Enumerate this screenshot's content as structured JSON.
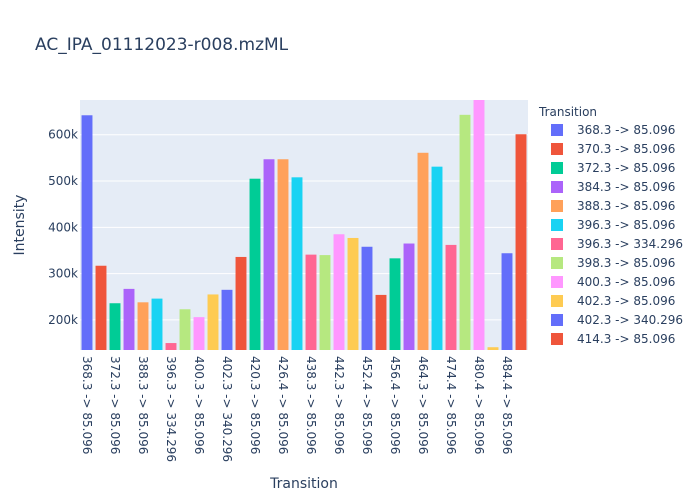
{
  "chart_data": {
    "type": "bar",
    "title": "AC_IPA_01112023-r008.mzML",
    "xlabel": "Transition",
    "ylabel": "Intensity",
    "ylim": [
      135000,
      675000
    ],
    "grid": true,
    "legend_placement": "right",
    "legend_title": "Transition",
    "yticks": [
      {
        "value": 200000,
        "label": "200k"
      },
      {
        "value": 300000,
        "label": "300k"
      },
      {
        "value": 400000,
        "label": "400k"
      },
      {
        "value": 500000,
        "label": "500k"
      },
      {
        "value": 600000,
        "label": "600k"
      }
    ],
    "xtick_labels": [
      "368.3 -> 85.096",
      "372.3 -> 85.096",
      "388.3 -> 85.096",
      "396.3 -> 334.296",
      "400.3 -> 85.096",
      "402.3 -> 340.296",
      "420.3 -> 85.096",
      "426.4 -> 85.096",
      "438.3 -> 85.096",
      "442.3 -> 85.096",
      "452.4 -> 85.096",
      "456.4 -> 85.096",
      "464.3 -> 85.096",
      "474.4 -> 85.096",
      "480.4 -> 85.096",
      "484.4 -> 85.096"
    ],
    "legend": [
      {
        "name": "368.3 -> 85.096",
        "color": "#636efa"
      },
      {
        "name": "370.3 -> 85.096",
        "color": "#EF553B"
      },
      {
        "name": "372.3 -> 85.096",
        "color": "#00cc96"
      },
      {
        "name": "384.3 -> 85.096",
        "color": "#ab63fa"
      },
      {
        "name": "388.3 -> 85.096",
        "color": "#FFA15A"
      },
      {
        "name": "396.3 -> 85.096",
        "color": "#19d3f3"
      },
      {
        "name": "396.3 -> 334.296",
        "color": "#FF6692"
      },
      {
        "name": "398.3 -> 85.096",
        "color": "#B6E880"
      },
      {
        "name": "400.3 -> 85.096",
        "color": "#FF97FF"
      },
      {
        "name": "402.3 -> 85.096",
        "color": "#FECB52"
      },
      {
        "name": "402.3 -> 340.296",
        "color": "#636efa"
      },
      {
        "name": "414.3 -> 85.096",
        "color": "#EF553B"
      }
    ],
    "bars": [
      {
        "value": 642000,
        "color": "#636efa"
      },
      {
        "value": 317000,
        "color": "#EF553B"
      },
      {
        "value": 236000,
        "color": "#00cc96"
      },
      {
        "value": 267000,
        "color": "#ab63fa"
      },
      {
        "value": 238000,
        "color": "#FFA15A"
      },
      {
        "value": 246000,
        "color": "#19d3f3"
      },
      {
        "value": 150000,
        "color": "#FF6692"
      },
      {
        "value": 223000,
        "color": "#B6E880"
      },
      {
        "value": 206000,
        "color": "#FF97FF"
      },
      {
        "value": 255000,
        "color": "#FECB52"
      },
      {
        "value": 265000,
        "color": "#636efa"
      },
      {
        "value": 336000,
        "color": "#EF553B"
      },
      {
        "value": 505000,
        "color": "#00cc96"
      },
      {
        "value": 547000,
        "color": "#ab63fa"
      },
      {
        "value": 547000,
        "color": "#FFA15A"
      },
      {
        "value": 508000,
        "color": "#19d3f3"
      },
      {
        "value": 341000,
        "color": "#FF6692"
      },
      {
        "value": 340000,
        "color": "#B6E880"
      },
      {
        "value": 385000,
        "color": "#FF97FF"
      },
      {
        "value": 377000,
        "color": "#FECB52"
      },
      {
        "value": 358000,
        "color": "#636efa"
      },
      {
        "value": 254000,
        "color": "#EF553B"
      },
      {
        "value": 333000,
        "color": "#00cc96"
      },
      {
        "value": 365000,
        "color": "#ab63fa"
      },
      {
        "value": 561000,
        "color": "#FFA15A"
      },
      {
        "value": 531000,
        "color": "#19d3f3"
      },
      {
        "value": 362000,
        "color": "#FF6692"
      },
      {
        "value": 643000,
        "color": "#B6E880"
      },
      {
        "value": 675000,
        "color": "#FF97FF"
      },
      {
        "value": 141000,
        "color": "#FECB52"
      },
      {
        "value": 344000,
        "color": "#636efa"
      },
      {
        "value": 601000,
        "color": "#EF553B"
      }
    ]
  }
}
